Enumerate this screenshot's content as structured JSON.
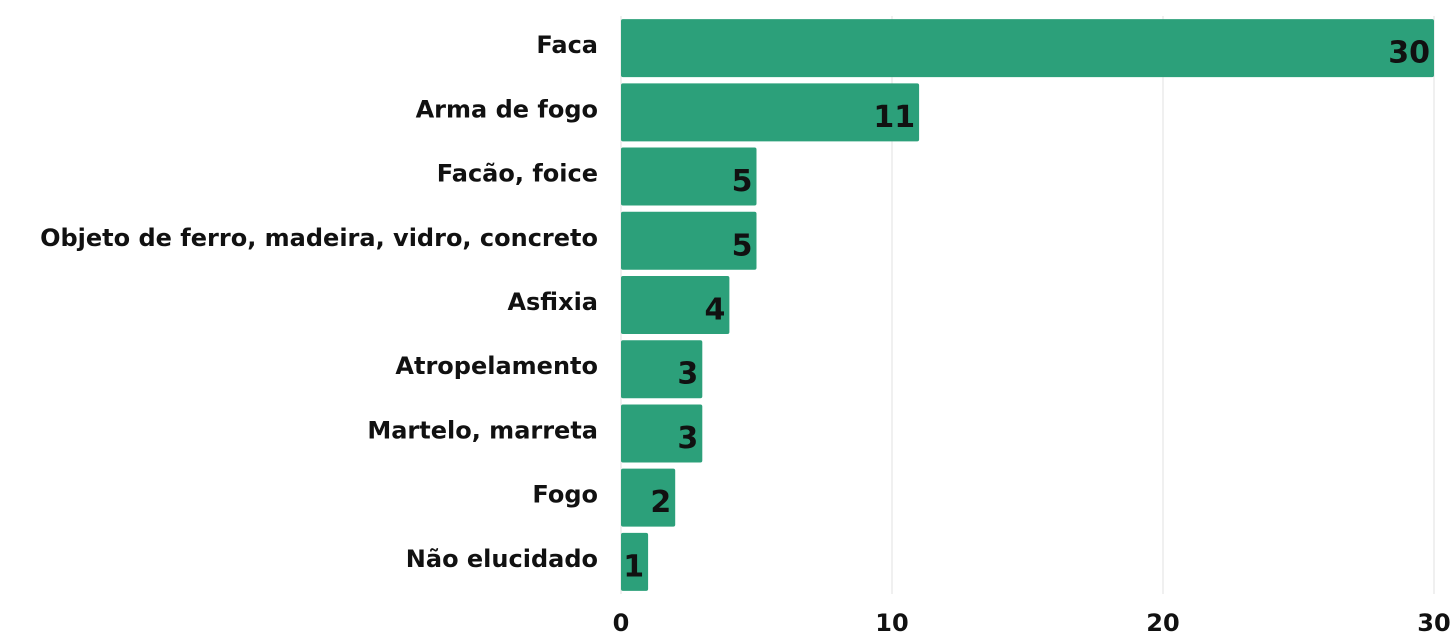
{
  "chart_data": {
    "type": "bar",
    "orientation": "horizontal",
    "categories": [
      "Faca",
      "Arma de fogo",
      "Facão, foice",
      "Objeto de ferro, madeira, vidro, concreto",
      "Asfixia",
      "Atropelamento",
      "Martelo, marreta",
      "Fogo",
      "Não elucidado"
    ],
    "values": [
      30,
      11,
      5,
      5,
      4,
      3,
      3,
      2,
      1
    ],
    "color": "#2ca07a",
    "xlim": [
      0,
      30
    ],
    "xticks": [
      0,
      10,
      20,
      30
    ],
    "grid": true
  }
}
